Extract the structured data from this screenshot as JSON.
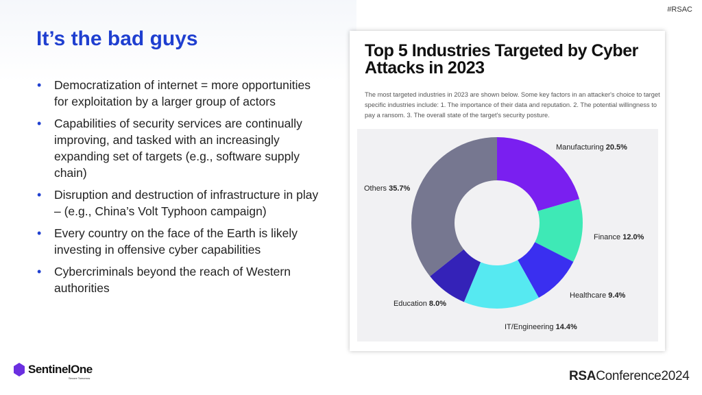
{
  "header": {
    "tag": "#RSAC",
    "title": "It’s the bad guys"
  },
  "bullets": [
    "Democratization of internet = more opportunities for exploitation by a larger group of actors",
    "Capabilities of security services are continually improving, and tasked with an increasingly expanding set of targets (e.g., software supply chain)",
    "Disruption and destruction of infrastructure in play – (e.g., China’s Volt Typhoon campaign)",
    "Every country on the face of the Earth is likely investing in offensive cyber capabilities",
    "Cybercriminals beyond the reach of Western authorities"
  ],
  "chart_data": {
    "type": "pie",
    "donut": true,
    "title": "Top 5 Industries Targeted by Cyber Attacks in 2023",
    "subtitle": "The most targeted industries in 2023 are shown below.  Some key factors in an attacker's choice to target specific industries include: 1. The importance of their data and reputation. 2. The potential willingness to pay a ransom. 3. The overall state of the target's security posture.",
    "slices": [
      {
        "name": "Manufacturing",
        "value": 20.5,
        "label": "20.5%",
        "color": "#7a1ff0"
      },
      {
        "name": "Finance",
        "value": 12.0,
        "label": "12.0%",
        "color": "#3ee9b6"
      },
      {
        "name": "Healthcare",
        "value": 9.4,
        "label": "9.4%",
        "color": "#3a2ff0"
      },
      {
        "name": "IT/Engineering",
        "value": 14.4,
        "label": "14.4%",
        "color": "#56e9f1"
      },
      {
        "name": "Education",
        "value": 8.0,
        "label": "8.0%",
        "color": "#3422b8"
      },
      {
        "name": "Others",
        "value": 35.7,
        "label": "35.7%",
        "color": "#767790"
      }
    ]
  },
  "footer": {
    "logo_text": "SentinelOne",
    "logo_tagline": "Secure Tomorrow",
    "conference_bold": "RSA",
    "conference": "Conference",
    "year": "2024"
  }
}
